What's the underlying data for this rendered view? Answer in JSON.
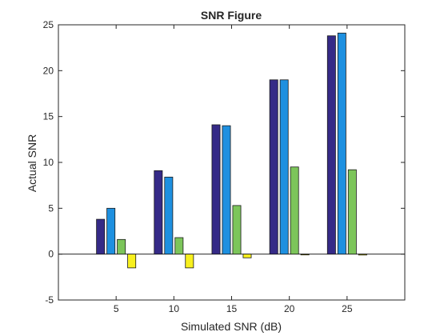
{
  "chart_data": {
    "type": "bar",
    "title": "SNR Figure",
    "xlabel": "Simulated SNR (dB)",
    "ylabel": "Actual SNR",
    "categories": [
      "5",
      "10",
      "15",
      "20",
      "25"
    ],
    "xlim": [
      0,
      30
    ],
    "ylim": [
      -5,
      25
    ],
    "yticks": [
      -5,
      0,
      5,
      10,
      15,
      20,
      25
    ],
    "grid": false,
    "legend": "none",
    "series": [
      {
        "color": "#352A87",
        "values": [
          3.8,
          9.1,
          14.1,
          19.0,
          23.8
        ]
      },
      {
        "color": "#1E90E0",
        "values": [
          5.0,
          8.4,
          14.0,
          19.0,
          24.1
        ]
      },
      {
        "color": "#7CC55A",
        "values": [
          1.6,
          1.8,
          5.3,
          9.5,
          9.2
        ]
      },
      {
        "color": "#F8F01E",
        "values": [
          -1.5,
          -1.5,
          -0.4,
          -0.05,
          -0.1
        ]
      }
    ]
  }
}
